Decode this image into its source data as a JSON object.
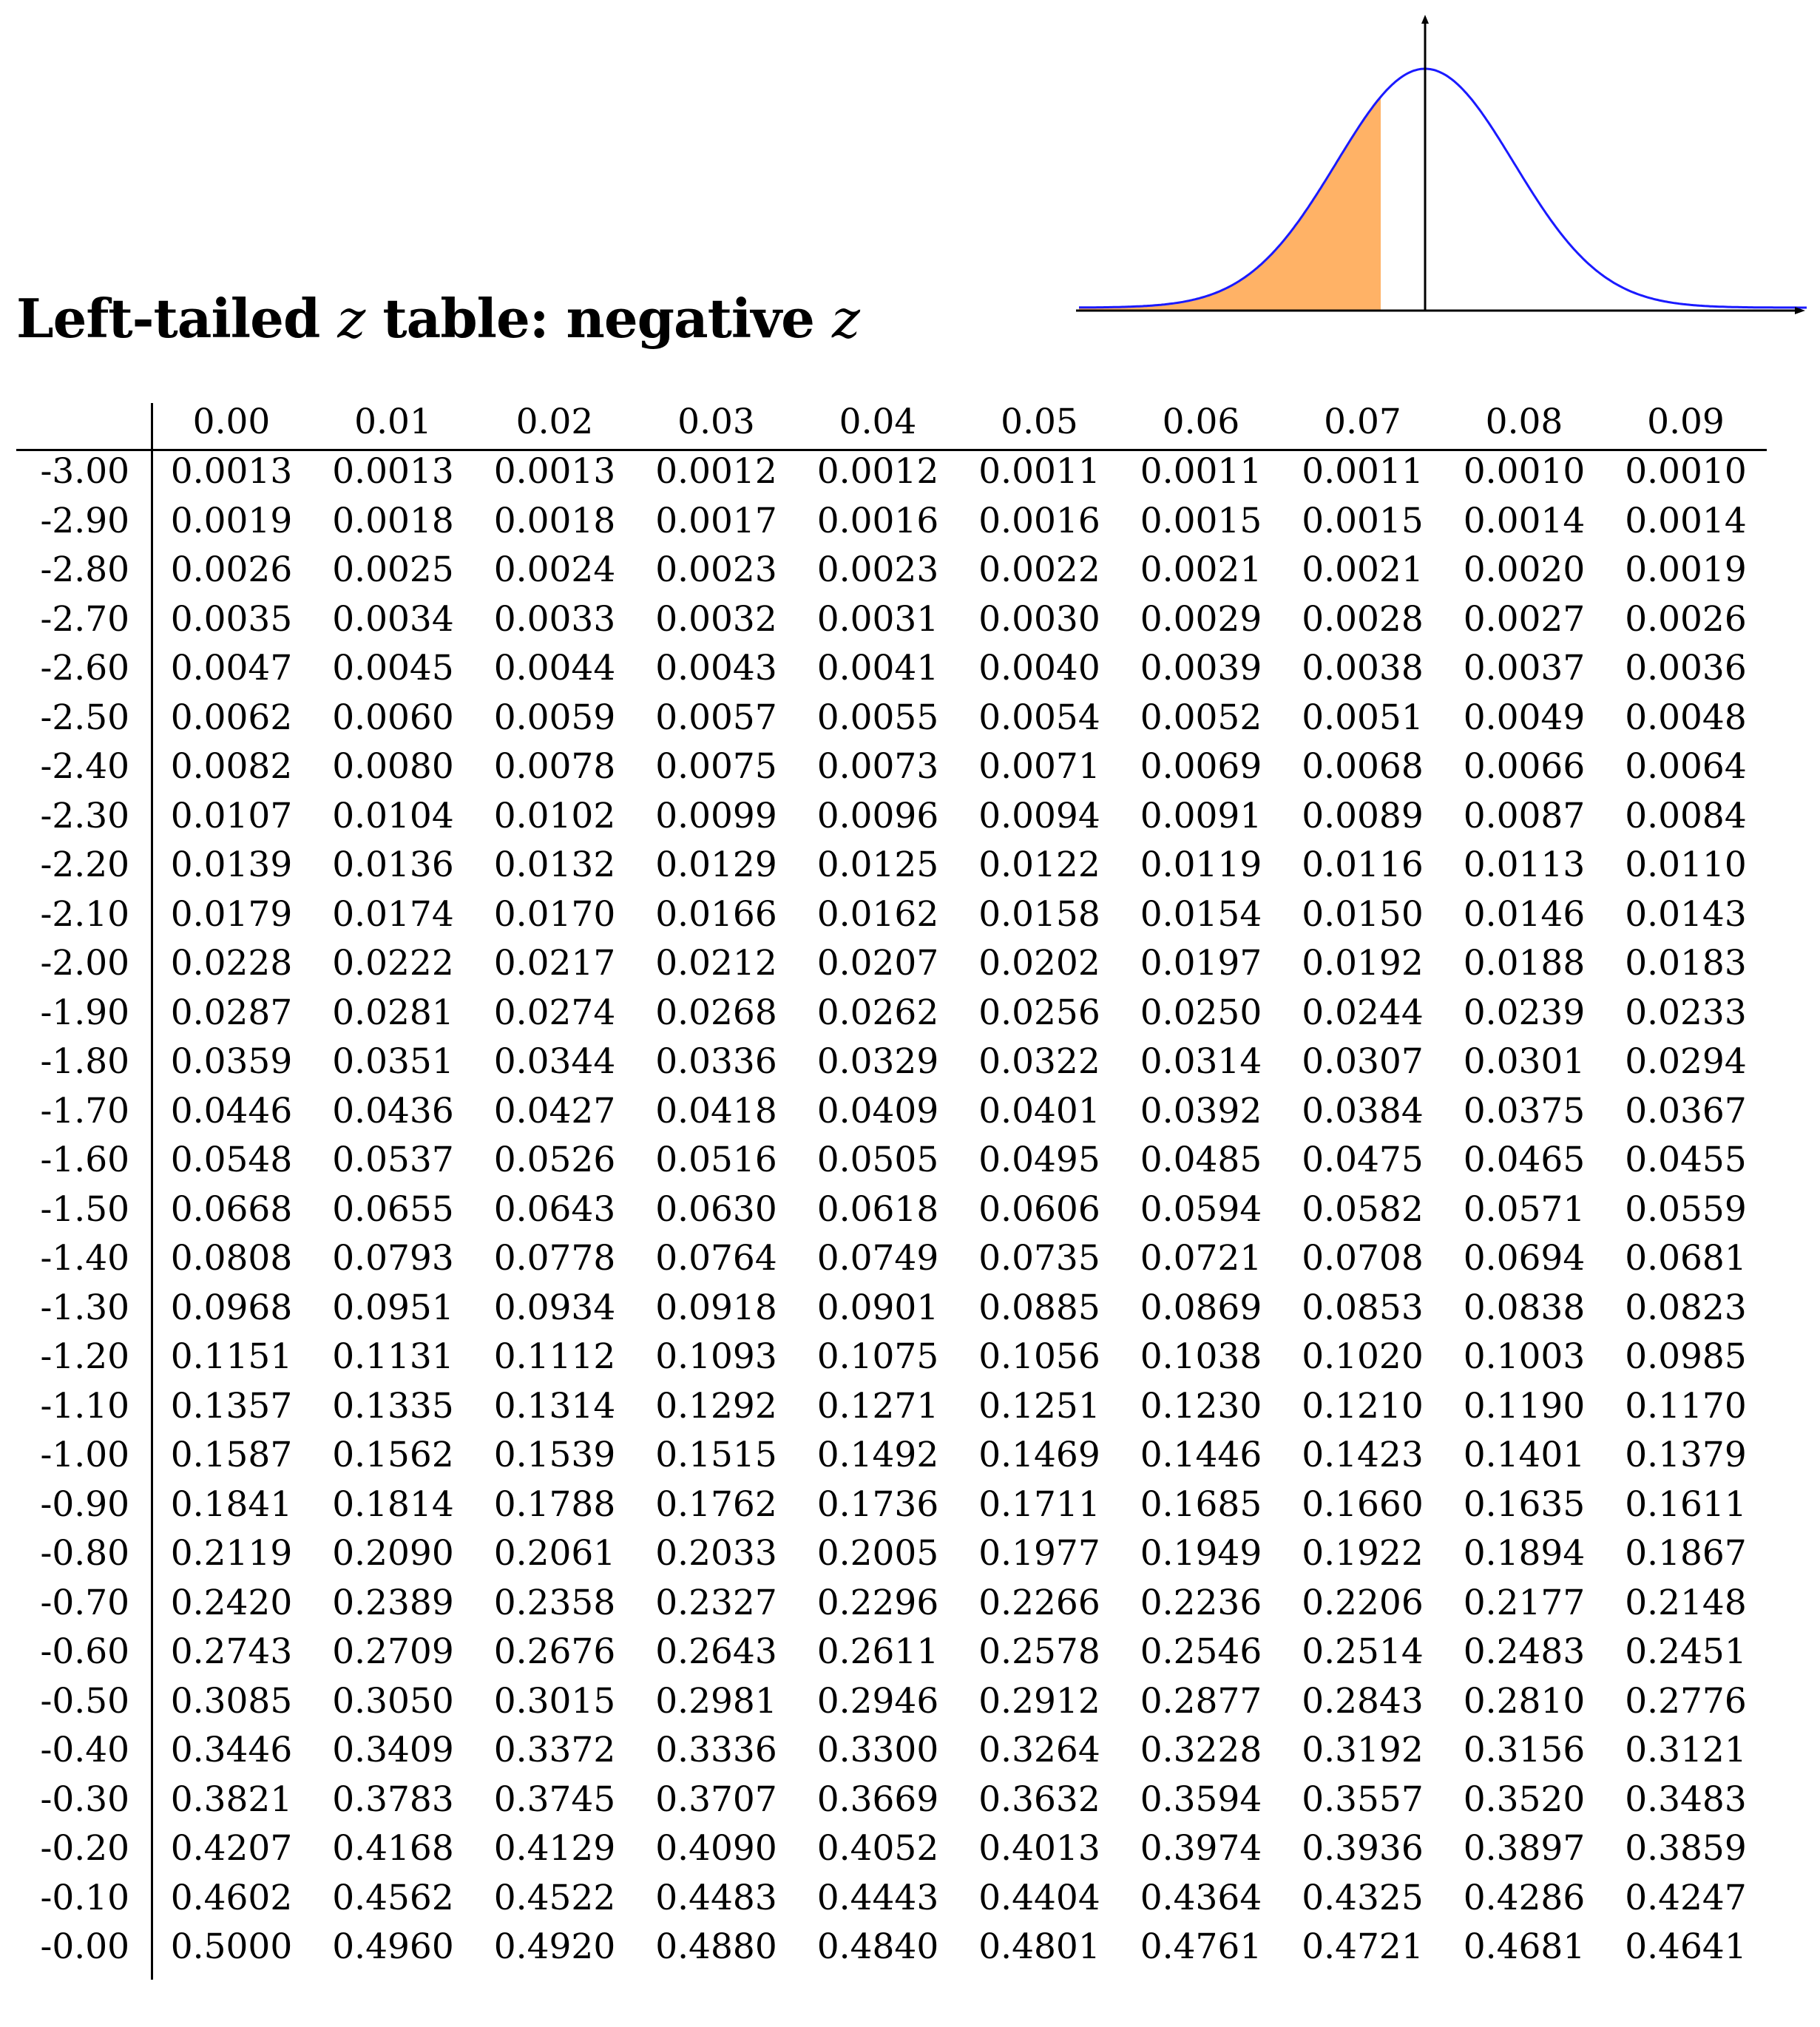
{
  "title": {
    "prefix": "Left-tailed",
    "z1": "z",
    "middle": "table: negative",
    "z2": "z"
  },
  "colors": {
    "curve": "#1a1aff",
    "shade": "#ffb266",
    "axis": "#000000"
  },
  "table": {
    "columns": [
      "0.00",
      "0.01",
      "0.02",
      "0.03",
      "0.04",
      "0.05",
      "0.06",
      "0.07",
      "0.08",
      "0.09"
    ],
    "rows": [
      {
        "z": "-3.00",
        "values": [
          "0.0013",
          "0.0013",
          "0.0013",
          "0.0012",
          "0.0012",
          "0.0011",
          "0.0011",
          "0.0011",
          "0.0010",
          "0.0010"
        ]
      },
      {
        "z": "-2.90",
        "values": [
          "0.0019",
          "0.0018",
          "0.0018",
          "0.0017",
          "0.0016",
          "0.0016",
          "0.0015",
          "0.0015",
          "0.0014",
          "0.0014"
        ]
      },
      {
        "z": "-2.80",
        "values": [
          "0.0026",
          "0.0025",
          "0.0024",
          "0.0023",
          "0.0023",
          "0.0022",
          "0.0021",
          "0.0021",
          "0.0020",
          "0.0019"
        ]
      },
      {
        "z": "-2.70",
        "values": [
          "0.0035",
          "0.0034",
          "0.0033",
          "0.0032",
          "0.0031",
          "0.0030",
          "0.0029",
          "0.0028",
          "0.0027",
          "0.0026"
        ]
      },
      {
        "z": "-2.60",
        "values": [
          "0.0047",
          "0.0045",
          "0.0044",
          "0.0043",
          "0.0041",
          "0.0040",
          "0.0039",
          "0.0038",
          "0.0037",
          "0.0036"
        ]
      },
      {
        "z": "-2.50",
        "values": [
          "0.0062",
          "0.0060",
          "0.0059",
          "0.0057",
          "0.0055",
          "0.0054",
          "0.0052",
          "0.0051",
          "0.0049",
          "0.0048"
        ]
      },
      {
        "z": "-2.40",
        "values": [
          "0.0082",
          "0.0080",
          "0.0078",
          "0.0075",
          "0.0073",
          "0.0071",
          "0.0069",
          "0.0068",
          "0.0066",
          "0.0064"
        ]
      },
      {
        "z": "-2.30",
        "values": [
          "0.0107",
          "0.0104",
          "0.0102",
          "0.0099",
          "0.0096",
          "0.0094",
          "0.0091",
          "0.0089",
          "0.0087",
          "0.0084"
        ]
      },
      {
        "z": "-2.20",
        "values": [
          "0.0139",
          "0.0136",
          "0.0132",
          "0.0129",
          "0.0125",
          "0.0122",
          "0.0119",
          "0.0116",
          "0.0113",
          "0.0110"
        ]
      },
      {
        "z": "-2.10",
        "values": [
          "0.0179",
          "0.0174",
          "0.0170",
          "0.0166",
          "0.0162",
          "0.0158",
          "0.0154",
          "0.0150",
          "0.0146",
          "0.0143"
        ]
      },
      {
        "z": "-2.00",
        "values": [
          "0.0228",
          "0.0222",
          "0.0217",
          "0.0212",
          "0.0207",
          "0.0202",
          "0.0197",
          "0.0192",
          "0.0188",
          "0.0183"
        ]
      },
      {
        "z": "-1.90",
        "values": [
          "0.0287",
          "0.0281",
          "0.0274",
          "0.0268",
          "0.0262",
          "0.0256",
          "0.0250",
          "0.0244",
          "0.0239",
          "0.0233"
        ]
      },
      {
        "z": "-1.80",
        "values": [
          "0.0359",
          "0.0351",
          "0.0344",
          "0.0336",
          "0.0329",
          "0.0322",
          "0.0314",
          "0.0307",
          "0.0301",
          "0.0294"
        ]
      },
      {
        "z": "-1.70",
        "values": [
          "0.0446",
          "0.0436",
          "0.0427",
          "0.0418",
          "0.0409",
          "0.0401",
          "0.0392",
          "0.0384",
          "0.0375",
          "0.0367"
        ]
      },
      {
        "z": "-1.60",
        "values": [
          "0.0548",
          "0.0537",
          "0.0526",
          "0.0516",
          "0.0505",
          "0.0495",
          "0.0485",
          "0.0475",
          "0.0465",
          "0.0455"
        ]
      },
      {
        "z": "-1.50",
        "values": [
          "0.0668",
          "0.0655",
          "0.0643",
          "0.0630",
          "0.0618",
          "0.0606",
          "0.0594",
          "0.0582",
          "0.0571",
          "0.0559"
        ]
      },
      {
        "z": "-1.40",
        "values": [
          "0.0808",
          "0.0793",
          "0.0778",
          "0.0764",
          "0.0749",
          "0.0735",
          "0.0721",
          "0.0708",
          "0.0694",
          "0.0681"
        ]
      },
      {
        "z": "-1.30",
        "values": [
          "0.0968",
          "0.0951",
          "0.0934",
          "0.0918",
          "0.0901",
          "0.0885",
          "0.0869",
          "0.0853",
          "0.0838",
          "0.0823"
        ]
      },
      {
        "z": "-1.20",
        "values": [
          "0.1151",
          "0.1131",
          "0.1112",
          "0.1093",
          "0.1075",
          "0.1056",
          "0.1038",
          "0.1020",
          "0.1003",
          "0.0985"
        ]
      },
      {
        "z": "-1.10",
        "values": [
          "0.1357",
          "0.1335",
          "0.1314",
          "0.1292",
          "0.1271",
          "0.1251",
          "0.1230",
          "0.1210",
          "0.1190",
          "0.1170"
        ]
      },
      {
        "z": "-1.00",
        "values": [
          "0.1587",
          "0.1562",
          "0.1539",
          "0.1515",
          "0.1492",
          "0.1469",
          "0.1446",
          "0.1423",
          "0.1401",
          "0.1379"
        ]
      },
      {
        "z": "-0.90",
        "values": [
          "0.1841",
          "0.1814",
          "0.1788",
          "0.1762",
          "0.1736",
          "0.1711",
          "0.1685",
          "0.1660",
          "0.1635",
          "0.1611"
        ]
      },
      {
        "z": "-0.80",
        "values": [
          "0.2119",
          "0.2090",
          "0.2061",
          "0.2033",
          "0.2005",
          "0.1977",
          "0.1949",
          "0.1922",
          "0.1894",
          "0.1867"
        ]
      },
      {
        "z": "-0.70",
        "values": [
          "0.2420",
          "0.2389",
          "0.2358",
          "0.2327",
          "0.2296",
          "0.2266",
          "0.2236",
          "0.2206",
          "0.2177",
          "0.2148"
        ]
      },
      {
        "z": "-0.60",
        "values": [
          "0.2743",
          "0.2709",
          "0.2676",
          "0.2643",
          "0.2611",
          "0.2578",
          "0.2546",
          "0.2514",
          "0.2483",
          "0.2451"
        ]
      },
      {
        "z": "-0.50",
        "values": [
          "0.3085",
          "0.3050",
          "0.3015",
          "0.2981",
          "0.2946",
          "0.2912",
          "0.2877",
          "0.2843",
          "0.2810",
          "0.2776"
        ]
      },
      {
        "z": "-0.40",
        "values": [
          "0.3446",
          "0.3409",
          "0.3372",
          "0.3336",
          "0.3300",
          "0.3264",
          "0.3228",
          "0.3192",
          "0.3156",
          "0.3121"
        ]
      },
      {
        "z": "-0.30",
        "values": [
          "0.3821",
          "0.3783",
          "0.3745",
          "0.3707",
          "0.3669",
          "0.3632",
          "0.3594",
          "0.3557",
          "0.3520",
          "0.3483"
        ]
      },
      {
        "z": "-0.20",
        "values": [
          "0.4207",
          "0.4168",
          "0.4129",
          "0.4090",
          "0.4052",
          "0.4013",
          "0.3974",
          "0.3936",
          "0.3897",
          "0.3859"
        ]
      },
      {
        "z": "-0.10",
        "values": [
          "0.4602",
          "0.4562",
          "0.4522",
          "0.4483",
          "0.4443",
          "0.4404",
          "0.4364",
          "0.4325",
          "0.4286",
          "0.4247"
        ]
      },
      {
        "z": "-0.00",
        "values": [
          "0.5000",
          "0.4960",
          "0.4920",
          "0.4880",
          "0.4840",
          "0.4801",
          "0.4761",
          "0.4721",
          "0.4681",
          "0.4641"
        ]
      }
    ]
  },
  "diagram": {
    "shaded_tail": "left",
    "shade_upper_z": -0.5
  }
}
